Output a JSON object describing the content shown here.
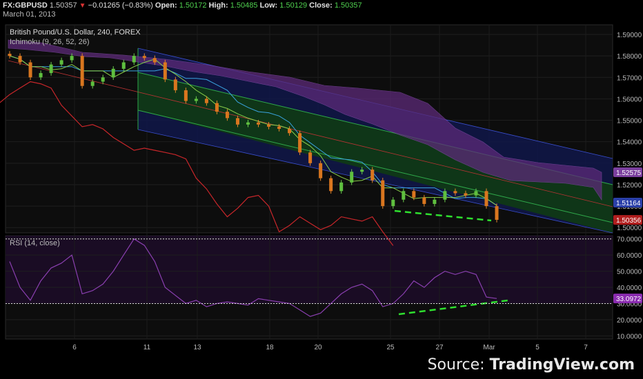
{
  "header": {
    "symbol": "FX:GBPUSD",
    "last": "1.50357",
    "change": "−0.01265 (−0.83%)",
    "open_label": "Open:",
    "open": "1.50172",
    "high_label": "High:",
    "high": "1.50485",
    "low_label": "Low:",
    "low": "1.50129",
    "close_label": "Close:",
    "close": "1.50357",
    "date": "March 01, 2013"
  },
  "main_pane": {
    "title": "British Pound/U.S. Dollar, 240, FOREX",
    "indicator": "Ichimoku (9, 26, 52, 26)",
    "price_ticks": [
      "1.59000",
      "1.58000",
      "1.57000",
      "1.56000",
      "1.55000",
      "1.54000",
      "1.53000",
      "1.52000",
      "1.51000",
      "1.50000"
    ],
    "price_tags": [
      {
        "label": "1.52575",
        "value": 1.52575,
        "color": "#7b3f9e"
      },
      {
        "label": "1.51164",
        "value": 1.51164,
        "color": "#2a3fa8"
      },
      {
        "label": "1.50356",
        "value": 1.50356,
        "color": "#b01e1e"
      }
    ]
  },
  "rsi_pane": {
    "title": "RSI (14, close)",
    "ticks": [
      "70.0000",
      "60.0000",
      "50.0000",
      "40.0000",
      "30.0000",
      "20.0000",
      "10.0000"
    ],
    "tag": {
      "label": "33.0972",
      "value": 33.0972,
      "color": "#8a2bb0"
    }
  },
  "x_axis": {
    "labels": [
      "6",
      "11",
      "13",
      "18",
      "20",
      "25",
      "27",
      "Mar",
      "5",
      "7"
    ]
  },
  "source": {
    "prefix": "Source: ",
    "brand": "TradingView.com"
  },
  "chart_data": {
    "type": "line",
    "ohlc_close": [
      1.58,
      1.577,
      1.57,
      1.572,
      1.576,
      1.578,
      1.58,
      1.566,
      1.568,
      1.57,
      1.574,
      1.577,
      1.58,
      1.579,
      1.577,
      1.569,
      1.564,
      1.559,
      1.56,
      1.558,
      1.554,
      1.551,
      1.548,
      1.549,
      1.548,
      1.547,
      1.546,
      1.544,
      1.535,
      1.53,
      1.523,
      1.517,
      1.521,
      1.526,
      1.527,
      1.522,
      1.51,
      1.513,
      1.517,
      1.514,
      1.511,
      1.513,
      1.517,
      1.516,
      1.515,
      1.517,
      1.51,
      1.5036
    ],
    "rsi": [
      56,
      40,
      32,
      44,
      52,
      55,
      60,
      36,
      38,
      42,
      50,
      60,
      70,
      66,
      56,
      40,
      35,
      30,
      32,
      28,
      30,
      31,
      30,
      29,
      33,
      32,
      31,
      30,
      26,
      22,
      24,
      30,
      36,
      40,
      42,
      38,
      28,
      30,
      36,
      44,
      40,
      46,
      50,
      48,
      50,
      48,
      34,
      33.1
    ],
    "ylim_price": [
      1.4975,
      1.5945
    ],
    "ylim_rsi": [
      8,
      72
    ]
  }
}
